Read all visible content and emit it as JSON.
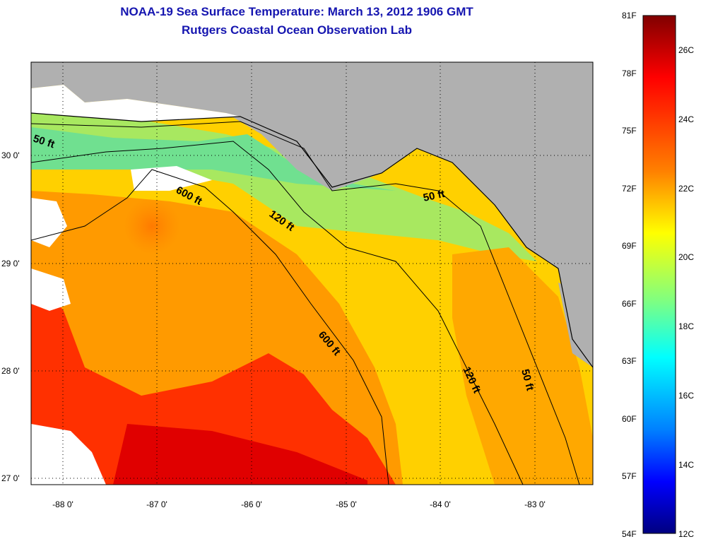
{
  "title": {
    "line1": "NOAA-19 Sea Surface Temperature:  March 13, 2012 1906 GMT",
    "line2": "Rutgers Coastal Ocean Observation Lab"
  },
  "map": {
    "lat_labels": [
      "30 0'",
      "29 0'",
      "28 0'",
      "27 0'"
    ],
    "lon_labels": [
      "-88 0'",
      "-87 0'",
      "-86 0'",
      "-85 0'",
      "-84 0'",
      "-83 0'"
    ],
    "contour_labels": [
      "50 ft",
      "600 ft",
      "120 ft",
      "50 ft",
      "600 ft",
      "120 ft",
      "50 ft"
    ]
  },
  "colorbar": {
    "fahrenheit": [
      "81F",
      "78F",
      "75F",
      "72F",
      "69F",
      "66F",
      "63F",
      "60F",
      "57F",
      "54F"
    ],
    "celsius": [
      "26C",
      "24C",
      "22C",
      "20C",
      "18C",
      "16C",
      "14C",
      "12C"
    ],
    "colors": [
      "#800000",
      "#ff0000",
      "#ff8000",
      "#ffff00",
      "#80ff80",
      "#00ffff",
      "#0080ff",
      "#0000ff",
      "#000080"
    ]
  }
}
